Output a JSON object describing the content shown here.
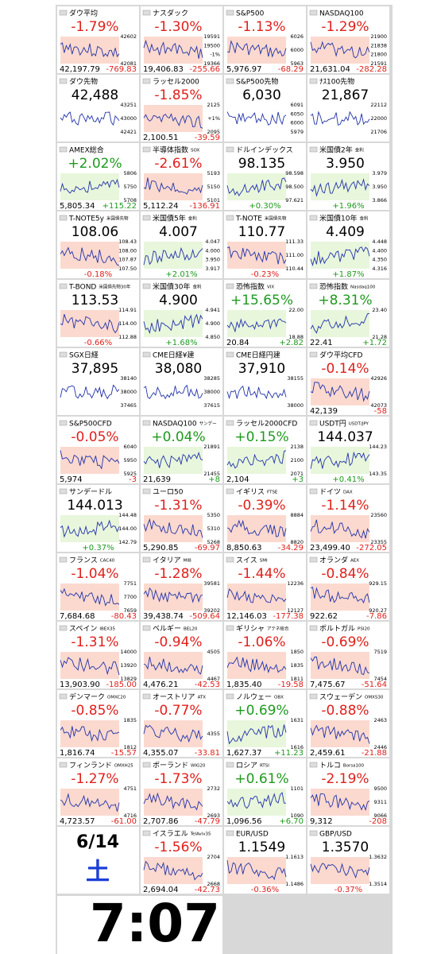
{
  "tiles": [
    {
      "name": "ダウ平均",
      "big": "-1.79%",
      "price": "42,197.79",
      "change": "-769.83",
      "ticks": [
        "42602",
        "42081"
      ],
      "dir": "down"
    },
    {
      "name": "ナスダック",
      "big": "-1.30%",
      "price": "19,406.83",
      "change": "-255.66",
      "ticks": [
        "19591",
        "19500",
        "-1%",
        "19366"
      ],
      "dir": "down"
    },
    {
      "name": "S&P500",
      "big": "-1.13%",
      "price": "5,976.97",
      "change": "-68.29",
      "ticks": [
        "6026",
        "6000",
        "5963"
      ],
      "dir": "down"
    },
    {
      "name": "NASDAQ100",
      "big": "-1.29%",
      "price": "21,631.04",
      "change": "-282.28",
      "ticks": [
        "21900",
        "21838",
        "21800",
        "21591"
      ],
      "dir": "down"
    },
    {
      "name": "ダウ先物",
      "big": "42,488",
      "ticks": [
        "43251",
        "43000",
        "42421"
      ],
      "dir": "flat"
    },
    {
      "name": "ラッセル2000",
      "big": "-1.85%",
      "price": "2,100.51",
      "change": "-39.59",
      "ticks": [
        "2125",
        "+1%",
        "2095"
      ],
      "dir": "down"
    },
    {
      "name": "S&P500先物",
      "big": "6,030",
      "ticks": [
        "6091",
        "6050",
        "6000",
        "5979"
      ],
      "dir": "flat"
    },
    {
      "name": "ﾅｽ100先物",
      "big": "21,867",
      "ticks": [
        "22112",
        "22000",
        "21706"
      ],
      "dir": "flat"
    },
    {
      "name": "AMEX総合",
      "big": "+2.02%",
      "price": "5,805.34",
      "change": "+115.22",
      "ticks": [
        "5806",
        "5750",
        "5708"
      ],
      "dir": "up"
    },
    {
      "name": "半導体指数",
      "sub": "SOX",
      "big": "-2.61%",
      "price": "5,112.24",
      "change": "-136.91",
      "ticks": [
        "5193",
        "5150",
        "5101"
      ],
      "dir": "down"
    },
    {
      "name": "ドルインデックス",
      "big": "98.135",
      "change": "+0.30%",
      "ticks": [
        "98.598",
        "98.500",
        "97.621"
      ],
      "dir": "up"
    },
    {
      "name": "米国債2年",
      "sub": "金利",
      "big": "3.950",
      "change": "+1.96%",
      "ticks": [
        "3.979",
        "3.950",
        "3.866"
      ],
      "dir": "up"
    },
    {
      "name": "T-NOTE5y",
      "sub": "米国債先物",
      "big": "108.06",
      "change": "-0.18%",
      "ticks": [
        "108.43",
        "108.00",
        "107.87",
        "107.50"
      ],
      "dir": "down"
    },
    {
      "name": "米国債5年",
      "sub": "金利",
      "big": "4.007",
      "change": "+2.01%",
      "ticks": [
        "4.047",
        "4.000",
        "3.950",
        "3.917"
      ],
      "dir": "up"
    },
    {
      "name": "T-NOTE",
      "sub": "米国債先物",
      "big": "110.77",
      "change": "-0.23%",
      "ticks": [
        "111.33",
        "111.00",
        "110.44"
      ],
      "dir": "down"
    },
    {
      "name": "米国債10年",
      "sub": "金利",
      "big": "4.409",
      "change": "+1.87%",
      "ticks": [
        "4.448",
        "4.400",
        "4.350",
        "4.316"
      ],
      "dir": "up"
    },
    {
      "name": "T-BOND",
      "sub": "米国債先物30年",
      "big": "113.53",
      "change": "-0.66%",
      "ticks": [
        "114.91",
        "114.00",
        "112.88"
      ],
      "dir": "down"
    },
    {
      "name": "米国債30年",
      "sub": "金利",
      "big": "4.900",
      "change": "+1.68%",
      "ticks": [
        "4.941",
        "4.900",
        "4.850"
      ],
      "dir": "up"
    },
    {
      "name": "恐怖指数",
      "sub": "VIX",
      "big": "+15.65%",
      "price": "20.84",
      "change": "+2.82",
      "ticks": [
        "22.00",
        "18.88"
      ],
      "dir": "up"
    },
    {
      "name": "恐怖指数",
      "sub": "Nasdaq100",
      "big": "+8.31%",
      "price": "22.41",
      "change": "+1.72",
      "ticks": [
        "23.40",
        "21.28"
      ],
      "dir": "up"
    },
    {
      "name": "SGX日経",
      "big": "37,895",
      "ticks": [
        "38140",
        "38000",
        "37465"
      ],
      "dir": "flat"
    },
    {
      "name": "CME日経¥建",
      "big": "38,080",
      "ticks": [
        "38285",
        "38000",
        "37615"
      ],
      "dir": "flat"
    },
    {
      "name": "CME日経円建",
      "big": "37,910",
      "ticks": [
        "38155",
        "38000"
      ],
      "dir": "flat"
    },
    {
      "name": "ダウ平均CFD",
      "big": "-0.14%",
      "price": "42,139",
      "change": "-58",
      "ticks": [
        "42926",
        "42073"
      ],
      "dir": "down"
    },
    {
      "name": "S&P500CFD",
      "big": "-0.05%",
      "price": "5,974",
      "change": "-3",
      "ticks": [
        "6040",
        "5950",
        "5925"
      ],
      "dir": "down"
    },
    {
      "name": "NASDAQ100",
      "sub": "サンデー",
      "big": "+0.04%",
      "price": "21,639",
      "change": "+8",
      "ticks": [
        "21891",
        "21455"
      ],
      "dir": "up"
    },
    {
      "name": "ラッセル2000CFD",
      "big": "+0.15%",
      "price": "2,104",
      "change": "+3",
      "ticks": [
        "2138",
        "2100",
        "2071"
      ],
      "dir": "up"
    },
    {
      "name": "USDT円",
      "sub": "USDT/JPY",
      "big": "144.037",
      "change": "+0.41%",
      "ticks": [
        "144.23",
        "143.35"
      ],
      "dir": "up"
    },
    {
      "name": "サンデードル",
      "big": "144.013",
      "change": "+0.37%",
      "ticks": [
        "144.48",
        "144.00",
        "142.79"
      ],
      "dir": "up"
    },
    {
      "name": "ユーロ50",
      "big": "-1.31%",
      "price": "5,290.85",
      "change": "-69.97",
      "ticks": [
        "5350",
        "5310",
        "5268"
      ],
      "dir": "down"
    },
    {
      "name": "イギリス",
      "sub": "FTSE",
      "big": "-0.39%",
      "price": "8,850.63",
      "change": "-34.29",
      "ticks": [
        "8884",
        "8820"
      ],
      "dir": "down"
    },
    {
      "name": "ドイツ",
      "sub": "DAX",
      "big": "-1.14%",
      "price": "23,499.40",
      "change": "-272.05",
      "ticks": [
        "23560",
        "23355"
      ],
      "dir": "down"
    },
    {
      "name": "フランス",
      "sub": "CAC40",
      "big": "-1.04%",
      "price": "7,684.68",
      "change": "-80.43",
      "ticks": [
        "7751",
        "7700",
        "7659"
      ],
      "dir": "down"
    },
    {
      "name": "イタリア",
      "sub": "MIB",
      "big": "-1.28%",
      "price": "39,438.74",
      "change": "-509.64",
      "ticks": [
        "39581",
        "39202"
      ],
      "dir": "down"
    },
    {
      "name": "スイス",
      "sub": "SMI",
      "big": "-1.44%",
      "price": "12,146.03",
      "change": "-177.38",
      "ticks": [
        "12236",
        "12127"
      ],
      "dir": "down"
    },
    {
      "name": "オランダ",
      "sub": "AEX",
      "big": "-0.84%",
      "price": "922.62",
      "change": "-7.86",
      "ticks": [
        "929.15",
        "920.27"
      ],
      "dir": "down"
    },
    {
      "name": "スペイン",
      "sub": "IBEX35",
      "big": "-1.31%",
      "price": "13,903.90",
      "change": "-185.00",
      "ticks": [
        "14000",
        "13920",
        "13829"
      ],
      "dir": "down"
    },
    {
      "name": "ベルギー",
      "sub": "BEL20",
      "big": "-0.94%",
      "price": "4,476.21",
      "change": "-42.53",
      "ticks": [
        "4505",
        "4467"
      ],
      "dir": "down"
    },
    {
      "name": "ギリシャ",
      "sub": "アテネ総合",
      "big": "-1.06%",
      "price": "1,835.40",
      "change": "-19.58",
      "ticks": [
        "1850",
        "1835",
        "1811"
      ],
      "dir": "down"
    },
    {
      "name": "ポルトガル",
      "sub": "PSI20",
      "big": "-0.69%",
      "price": "7,475.67",
      "change": "-51.64",
      "ticks": [
        "7519",
        "7454"
      ],
      "dir": "down"
    },
    {
      "name": "デンマーク",
      "sub": "OMXC20",
      "big": "-0.85%",
      "price": "1,816.74",
      "change": "-15.57",
      "ticks": [
        "1835",
        "1812"
      ],
      "dir": "down"
    },
    {
      "name": "オーストリア",
      "sub": "ATX",
      "big": "-0.77%",
      "price": "4,355.07",
      "change": "-33.81",
      "ticks": [
        "4355"
      ],
      "dir": "down"
    },
    {
      "name": "ノルウェー",
      "sub": "OBX",
      "big": "+0.69%",
      "price": "1,627.37",
      "change": "+11.23",
      "ticks": [
        "1631",
        "1616"
      ],
      "dir": "up"
    },
    {
      "name": "スウェーデン",
      "sub": "OMXS30",
      "big": "-0.88%",
      "price": "2,459.61",
      "change": "-21.88",
      "ticks": [
        "2463",
        "2446"
      ],
      "dir": "down"
    },
    {
      "name": "フィンランド",
      "sub": "OMXH25",
      "big": "-1.27%",
      "price": "4,723.57",
      "change": "-61.00",
      "ticks": [
        "4751",
        "4716"
      ],
      "dir": "down"
    },
    {
      "name": "ポーランド",
      "sub": "WIG20",
      "big": "-1.73%",
      "price": "2,707.86",
      "change": "-47.79",
      "ticks": [
        "2732",
        "2693"
      ],
      "dir": "down"
    },
    {
      "name": "ロシア",
      "sub": "RTSI",
      "big": "+0.61%",
      "price": "1,096.56",
      "change": "+6.70",
      "ticks": [
        "1101",
        "1090"
      ],
      "dir": "up"
    },
    {
      "name": "トルコ",
      "sub": "Borsa100",
      "big": "-2.19%",
      "price": "9,312",
      "change": "-208",
      "ticks": [
        "9500",
        "9311",
        "9066"
      ],
      "dir": "down"
    },
    {
      "name": "イスラエル",
      "sub": "TelAviv35",
      "big": "-1.56%",
      "price": "2,694.04",
      "change": "-42.73",
      "ticks": [
        "2704",
        "2668"
      ],
      "dir": "down"
    },
    {
      "name": "EUR/USD",
      "big": "1.1549",
      "change": "-0.36%",
      "ticks": [
        "1.1613",
        "1.1486"
      ],
      "dir": "down"
    },
    {
      "name": "GBP/USD",
      "big": "1.3570",
      "change": "-0.37%",
      "ticks": [
        "1.3632",
        "1.3514"
      ],
      "dir": "down"
    }
  ],
  "date": "6/14",
  "weekday": "土",
  "time": "7:07"
}
